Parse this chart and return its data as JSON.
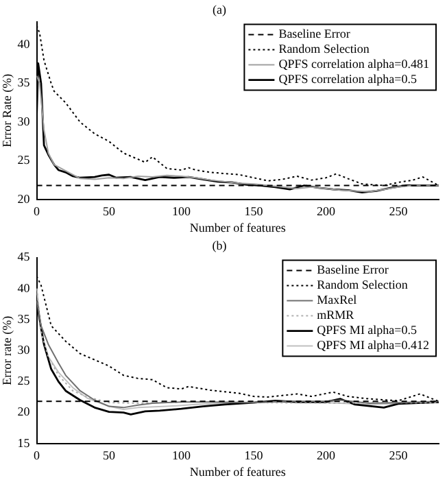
{
  "chart_data": [
    {
      "type": "line",
      "title": "(a)",
      "xlabel": "Number of features",
      "ylabel": "Error Rate (%)",
      "xlim": [
        0,
        278
      ],
      "xticks": [
        0,
        50,
        100,
        150,
        200,
        250
      ],
      "ylim": [
        20,
        43
      ],
      "yticks": [
        20,
        25,
        30,
        35,
        40
      ],
      "grid": false,
      "legend": "top right",
      "marker": "none",
      "series": [
        {
          "name": "Baseline Error",
          "color": "#000000",
          "line_style": "dashed",
          "x": [
            0,
            278
          ],
          "values": [
            21.8,
            21.8
          ]
        },
        {
          "name": "Random Selection",
          "color": "#000000",
          "line_style": "dotted",
          "x": [
            0,
            2,
            5,
            10,
            12,
            20,
            30,
            40,
            50,
            60,
            70,
            75,
            80,
            90,
            100,
            105,
            110,
            120,
            140,
            150,
            160,
            170,
            180,
            190,
            200,
            207,
            215,
            225,
            240,
            250,
            260,
            267,
            278
          ],
          "values": [
            42.5,
            41.5,
            38,
            35,
            34,
            32.5,
            30,
            28.5,
            27.5,
            26,
            25.2,
            24.8,
            25.5,
            24,
            23.8,
            24.1,
            23.8,
            23.5,
            23.2,
            22.8,
            22.4,
            22.6,
            23,
            22.5,
            22.8,
            23.3,
            22.7,
            22,
            21.8,
            22.2,
            22.5,
            22.9,
            21.8
          ]
        },
        {
          "name": "QPFS correlation alpha=0.481",
          "color": "#a0a0a0",
          "line_style": "solid",
          "x": [
            0,
            2,
            5,
            8,
            12,
            20,
            30,
            40,
            50,
            60,
            70,
            80,
            90,
            100,
            110,
            120,
            130,
            140,
            150,
            160,
            170,
            180,
            190,
            200,
            210,
            220,
            230,
            240,
            250,
            260,
            278
          ],
          "values": [
            36,
            35,
            29,
            26,
            24.5,
            23.7,
            22.7,
            22.6,
            22.8,
            22.7,
            23,
            22.9,
            23.1,
            23,
            22.8,
            22.5,
            22.3,
            22.1,
            22,
            21.8,
            21.6,
            21.4,
            21.6,
            21.4,
            21.2,
            21.1,
            21,
            21.3,
            21.6,
            21.8,
            21.8
          ]
        },
        {
          "name": "QPFS correlation alpha=0.5",
          "color": "#000000",
          "line_style": "solid",
          "x": [
            0,
            1,
            3,
            5,
            8,
            12,
            15,
            20,
            25,
            30,
            40,
            45,
            50,
            55,
            65,
            75,
            85,
            95,
            105,
            115,
            125,
            135,
            145,
            155,
            165,
            175,
            185,
            195,
            205,
            215,
            225,
            235,
            245,
            255,
            265,
            278
          ],
          "values": [
            31,
            37.6,
            35,
            27,
            25.8,
            24.5,
            23.8,
            23.5,
            23,
            22.8,
            22.9,
            23.1,
            23.2,
            22.8,
            22.9,
            22.5,
            22.9,
            22.8,
            22.9,
            22.6,
            22.3,
            22.2,
            21.9,
            21.8,
            21.6,
            21.3,
            21.8,
            21.5,
            21.3,
            21.2,
            20.9,
            21.1,
            21.5,
            21.8,
            21.8,
            21.8
          ]
        }
      ]
    },
    {
      "type": "line",
      "title": "(b)",
      "xlabel": "Number of features",
      "ylabel": "Error rate (%)",
      "xlim": [
        0,
        278
      ],
      "xticks": [
        0,
        50,
        100,
        150,
        200,
        250
      ],
      "ylim": [
        15,
        45
      ],
      "yticks": [
        15,
        20,
        25,
        30,
        35,
        40,
        45
      ],
      "grid": false,
      "legend": "top right",
      "marker": "none",
      "series": [
        {
          "name": "Baseline Error",
          "color": "#000000",
          "line_style": "dashed",
          "x": [
            0,
            278
          ],
          "values": [
            21.8,
            21.8
          ]
        },
        {
          "name": "Random Selection",
          "color": "#000000",
          "line_style": "dotted",
          "x": [
            0,
            3,
            10,
            20,
            30,
            40,
            50,
            60,
            70,
            80,
            90,
            100,
            105,
            120,
            140,
            150,
            160,
            180,
            190,
            205,
            215,
            230,
            250,
            265,
            278
          ],
          "values": [
            42,
            40.5,
            34,
            31.5,
            29.5,
            28.5,
            27.5,
            26,
            25.5,
            25.3,
            24,
            23.8,
            24.2,
            23.6,
            23.1,
            22.6,
            22.5,
            23,
            22.6,
            23.3,
            22.6,
            22.2,
            21.9,
            23,
            21.8
          ]
        },
        {
          "name": "MaxRel",
          "color": "#707070",
          "line_style": "solid",
          "x": [
            0,
            3,
            8,
            15,
            20,
            30,
            40,
            50,
            60,
            70,
            80,
            100,
            120,
            150,
            170,
            200,
            210,
            230,
            250,
            278
          ],
          "values": [
            38,
            34,
            31,
            28,
            26,
            23.5,
            22,
            21,
            20.8,
            21.2,
            21.5,
            21.7,
            21.7,
            21.6,
            21.8,
            21.8,
            22,
            21.5,
            21.6,
            21.8
          ]
        },
        {
          "name": "mRMR",
          "color": "#b0b0b0",
          "line_style": "dotted",
          "x": [
            0,
            3,
            8,
            15,
            25,
            35,
            50,
            70,
            100,
            130,
            160,
            200,
            240,
            278
          ],
          "values": [
            40,
            33,
            29,
            26,
            23.5,
            22.5,
            21.6,
            21.5,
            21.7,
            21.8,
            21.6,
            21.5,
            21.6,
            21.6
          ]
        },
        {
          "name": "QPFS MI alpha=0.5",
          "color": "#000000",
          "line_style": "solid",
          "x": [
            0,
            2,
            5,
            10,
            15,
            20,
            30,
            40,
            50,
            60,
            65,
            75,
            85,
            100,
            115,
            130,
            150,
            165,
            180,
            200,
            210,
            220,
            240,
            250,
            278
          ],
          "values": [
            38,
            35,
            31,
            27,
            25,
            23.5,
            22,
            20.8,
            20.1,
            20,
            19.7,
            20.2,
            20.3,
            20.6,
            21,
            21.3,
            21.6,
            21.9,
            21.7,
            21.7,
            22.2,
            21.3,
            20.8,
            21.4,
            21.7
          ]
        },
        {
          "name": "QPFS MI alpha=0.412",
          "color": "#c0c0c0",
          "line_style": "solid",
          "x": [
            0,
            3,
            8,
            15,
            25,
            35,
            50,
            60,
            70,
            90,
            110,
            130,
            150,
            170,
            200,
            230,
            260,
            278
          ],
          "values": [
            40,
            33,
            29,
            26.5,
            24,
            22.3,
            21,
            20.5,
            20.8,
            21,
            21.3,
            21.5,
            21.6,
            21.7,
            21.6,
            21.3,
            21.5,
            21.6
          ]
        }
      ]
    }
  ]
}
